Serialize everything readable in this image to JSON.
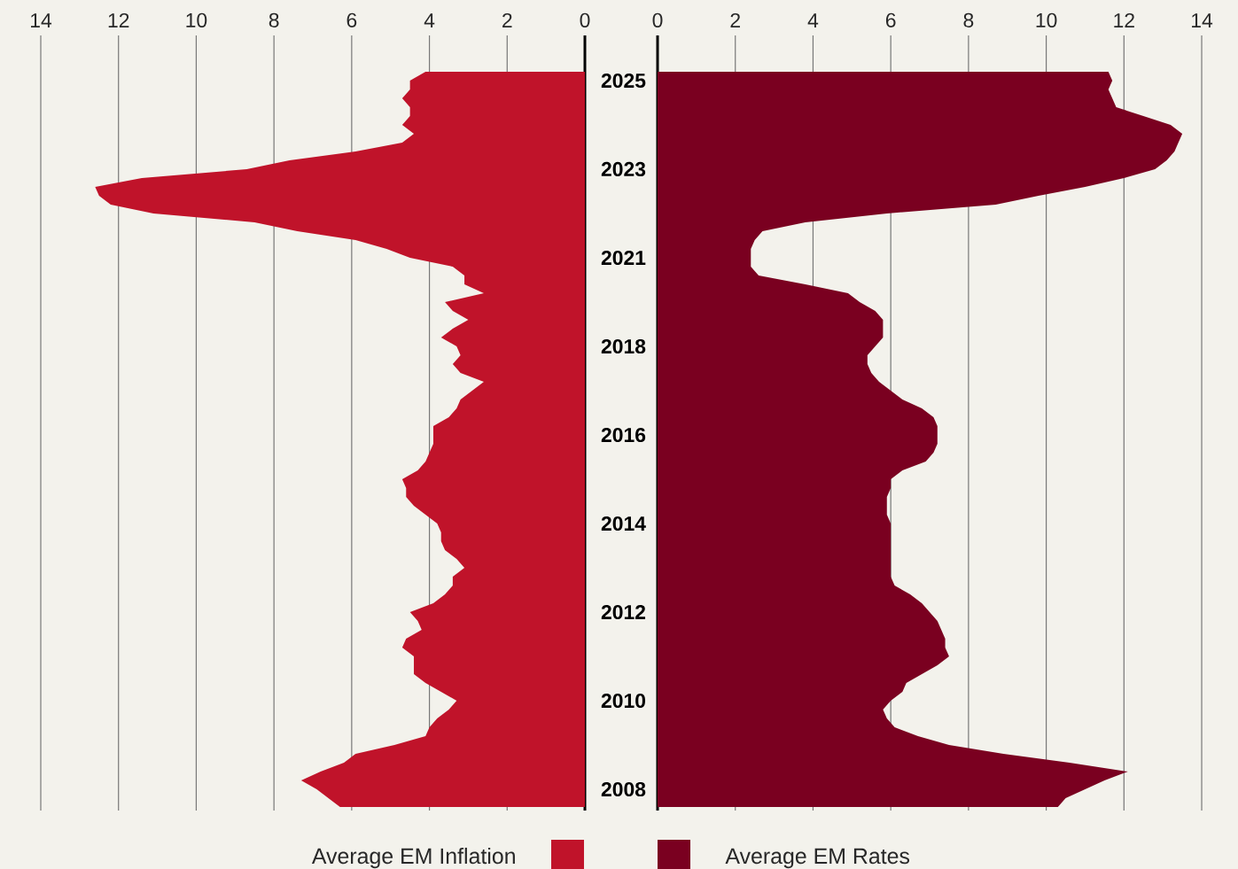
{
  "chart_data": [
    {
      "type": "area",
      "orientation": "horizontal",
      "categories": [
        null,
        "2025",
        null,
        null,
        null,
        null,
        null,
        null,
        null,
        null,
        null,
        "2023",
        null,
        null,
        null,
        null,
        null,
        null,
        null,
        null,
        null,
        "2021",
        null,
        null,
        null,
        null,
        null,
        null,
        null,
        null,
        null,
        "2018",
        null,
        null,
        null,
        null,
        null,
        null,
        null,
        null,
        null,
        "2016",
        null,
        null,
        null,
        null,
        null,
        null,
        null,
        null,
        null,
        "2014",
        null,
        null,
        null,
        null,
        null,
        null,
        null,
        null,
        null,
        "2012",
        null,
        null,
        null,
        null,
        null,
        null,
        null,
        null,
        null,
        "2010",
        null,
        null,
        null,
        null,
        null,
        null,
        null,
        null,
        null,
        "2008",
        null,
        null
      ],
      "series": [
        {
          "name": "Average EM Inflation",
          "color": "#c0132a",
          "values": [
            4.1,
            4.5,
            4.5,
            4.7,
            4.5,
            4.5,
            4.7,
            4.4,
            4.7,
            5.9,
            7.6,
            8.7,
            11.4,
            12.6,
            12.5,
            12.2,
            11.1,
            8.5,
            7.4,
            5.9,
            5.1,
            4.5,
            3.4,
            3.1,
            3.1,
            2.6,
            3.6,
            3.4,
            3.0,
            3.4,
            3.7,
            3.3,
            3.2,
            3.4,
            3.2,
            2.6,
            2.9,
            3.2,
            3.3,
            3.5,
            3.9,
            3.9,
            3.9,
            4.0,
            4.1,
            4.3,
            4.7,
            4.6,
            4.6,
            4.4,
            4.1,
            3.8,
            3.7,
            3.7,
            3.6,
            3.3,
            3.1,
            3.4,
            3.4,
            3.6,
            3.9,
            4.5,
            4.3,
            4.2,
            4.6,
            4.7,
            4.4,
            4.4,
            4.4,
            4.1,
            3.7,
            3.3,
            3.5,
            3.8,
            4.0,
            4.1,
            4.9,
            5.9,
            6.2,
            6.8,
            7.3,
            6.9,
            6.6,
            6.3
          ]
        }
      ],
      "xlim": [
        14,
        0
      ],
      "xticks": [
        0,
        2,
        4,
        6,
        8,
        10,
        12,
        14
      ],
      "grid": "x",
      "legend": "bottom",
      "tick_labels": "x"
    },
    {
      "type": "area",
      "orientation": "horizontal",
      "categories": [
        null,
        "2025",
        null,
        null,
        null,
        null,
        null,
        null,
        null,
        null,
        null,
        "2023",
        null,
        null,
        null,
        null,
        null,
        null,
        null,
        null,
        null,
        "2021",
        null,
        null,
        null,
        null,
        null,
        null,
        null,
        null,
        null,
        "2018",
        null,
        null,
        null,
        null,
        null,
        null,
        null,
        null,
        null,
        "2016",
        null,
        null,
        null,
        null,
        null,
        null,
        null,
        null,
        null,
        "2014",
        null,
        null,
        null,
        null,
        null,
        null,
        null,
        null,
        null,
        "2012",
        null,
        null,
        null,
        null,
        null,
        null,
        null,
        null,
        null,
        "2010",
        null,
        null,
        null,
        null,
        null,
        null,
        null,
        null,
        null,
        "2008",
        null,
        null
      ],
      "series": [
        {
          "name": "Average EM Rates",
          "color": "#7a0020",
          "values": [
            11.6,
            11.7,
            11.6,
            11.7,
            11.8,
            12.5,
            13.2,
            13.5,
            13.4,
            13.3,
            13.1,
            12.8,
            12.0,
            11.0,
            9.8,
            8.7,
            5.9,
            3.8,
            2.7,
            2.5,
            2.4,
            2.4,
            2.4,
            2.6,
            3.8,
            4.9,
            5.2,
            5.6,
            5.8,
            5.8,
            5.8,
            5.6,
            5.4,
            5.4,
            5.5,
            5.7,
            6.0,
            6.3,
            6.8,
            7.1,
            7.2,
            7.2,
            7.2,
            7.1,
            6.9,
            6.3,
            6.0,
            6.0,
            5.9,
            5.9,
            5.9,
            6.0,
            6.0,
            6.0,
            6.0,
            6.0,
            6.0,
            6.0,
            6.1,
            6.5,
            6.8,
            7.0,
            7.2,
            7.3,
            7.4,
            7.4,
            7.5,
            7.2,
            6.8,
            6.4,
            6.3,
            6.0,
            5.8,
            5.9,
            6.1,
            6.7,
            7.5,
            8.9,
            10.6,
            12.1,
            11.5,
            11.0,
            10.5,
            10.3
          ]
        }
      ],
      "xlim": [
        0,
        14
      ],
      "xticks": [
        0,
        2,
        4,
        6,
        8,
        10,
        12,
        14
      ],
      "grid": "x",
      "legend": "bottom"
    }
  ]
}
